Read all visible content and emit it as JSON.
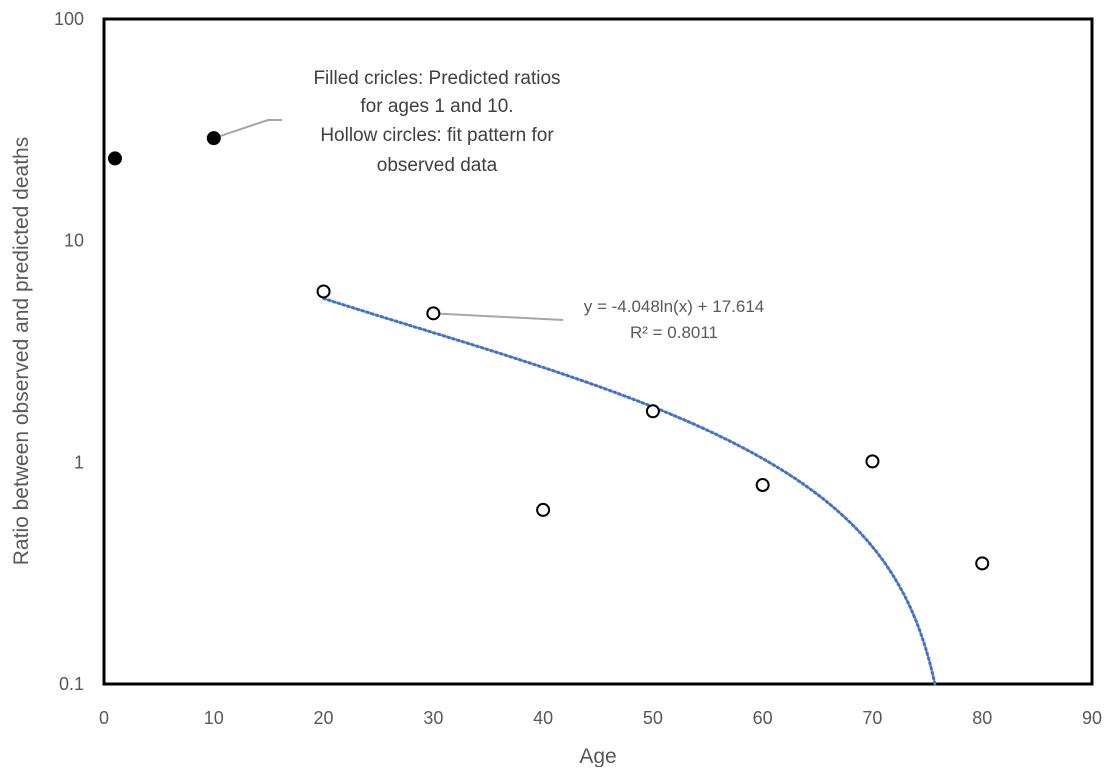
{
  "chart_data": {
    "type": "scatter",
    "xlabel": "Age",
    "ylabel": "Ratio between observed and predicted deaths",
    "xlim": [
      0,
      90
    ],
    "ylim": [
      0.1,
      100
    ],
    "y_scale": "log",
    "x_ticks": [
      0,
      10,
      20,
      30,
      40,
      50,
      60,
      70,
      80,
      90
    ],
    "x_tick_labels": [
      "0",
      "10",
      "20",
      "30",
      "40",
      "50",
      "60",
      "70",
      "80",
      "90"
    ],
    "y_ticks": [
      0.1,
      1,
      10,
      100
    ],
    "y_tick_labels": [
      "0.1",
      "1",
      "10",
      "100"
    ],
    "grid": false,
    "series": [
      {
        "marker": "filled-circle",
        "x": [
          1,
          10
        ],
        "y": [
          23.5,
          29
        ]
      },
      {
        "marker": "hollow-circle",
        "x": [
          20,
          30,
          40,
          50,
          60,
          70,
          80
        ],
        "y": [
          5.9,
          4.7,
          0.61,
          1.7,
          0.79,
          1.01,
          0.35
        ]
      }
    ],
    "trendline": {
      "style": "dotted",
      "color": "#4472C4",
      "model": "logarithmic",
      "a": -4.048,
      "b": 17.614,
      "x_start": 20,
      "equation_label": "y = -4.048ln(x) + 17.614",
      "r2_label": "R² = 0.8011"
    },
    "annotations": [
      {
        "lines": [
          "Filled cricles: Predicted ratios",
          "for ages 1 and 10.",
          "Hollow circles: fit pattern for",
          "observed data"
        ],
        "points_to": [
          10,
          29
        ]
      }
    ]
  }
}
